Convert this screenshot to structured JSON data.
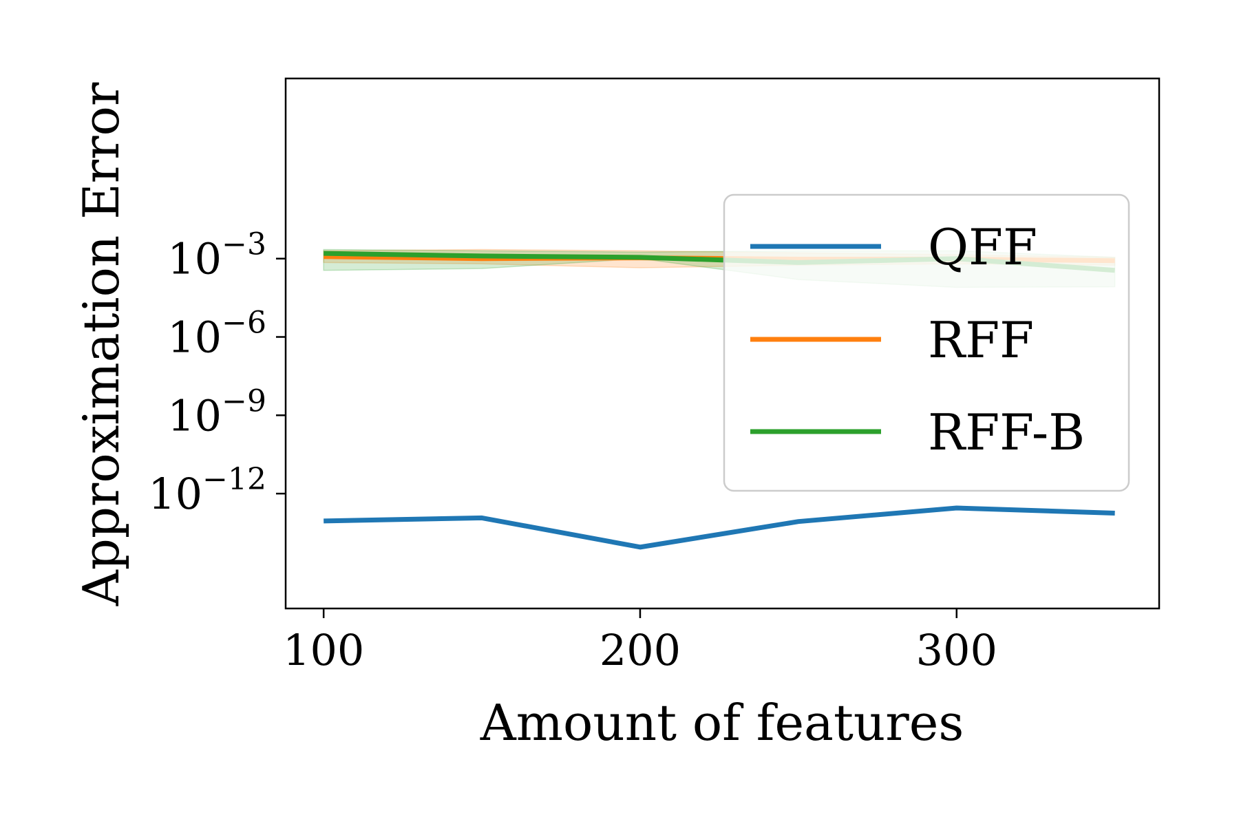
{
  "chart_data": {
    "type": "line",
    "xlabel": "Amount of features",
    "ylabel": "Approximation Error",
    "xscale": "linear",
    "yscale": "log",
    "xlim": [
      88,
      364
    ],
    "ylim_exponent": [
      -16.4,
      3.9
    ],
    "x_ticks": [
      100,
      200,
      300
    ],
    "y_ticks": [
      {
        "base": "10",
        "exponent": "−3",
        "value": -3
      },
      {
        "base": "10",
        "exponent": "−6",
        "value": -6
      },
      {
        "base": "10",
        "exponent": "−9",
        "value": -9
      },
      {
        "base": "10",
        "exponent": "−12",
        "value": -12
      }
    ],
    "x": [
      100,
      150,
      200,
      250,
      300,
      350
    ],
    "series": [
      {
        "name": "QFF",
        "color": "#1f77b4",
        "log10_values": [
          -13.05,
          -12.93,
          -14.05,
          -13.07,
          -12.55,
          -12.75
        ]
      },
      {
        "name": "RFF",
        "color": "#ff7f0e",
        "log10_values": [
          -2.92,
          -3.0,
          -2.97,
          -3.02,
          -3.02,
          -3.08
        ],
        "band_log10_lower": [
          -3.15,
          -3.2,
          -3.35,
          -3.25,
          -3.2,
          -3.25
        ],
        "band_log10_upper": [
          -2.7,
          -2.65,
          -2.7,
          -2.78,
          -2.85,
          -2.95
        ]
      },
      {
        "name": "RFF-B",
        "color": "#2ca02c",
        "log10_values": [
          -2.8,
          -2.9,
          -2.95,
          -3.15,
          -3.0,
          -3.45
        ],
        "band_log10_lower": [
          -3.45,
          -3.38,
          -3.0,
          -3.8,
          -4.1,
          -4.08
        ],
        "band_log10_upper": [
          -2.65,
          -2.7,
          -2.75,
          -2.7,
          -2.7,
          -2.95
        ]
      }
    ],
    "legend_position": "center-right",
    "grid": false
  }
}
